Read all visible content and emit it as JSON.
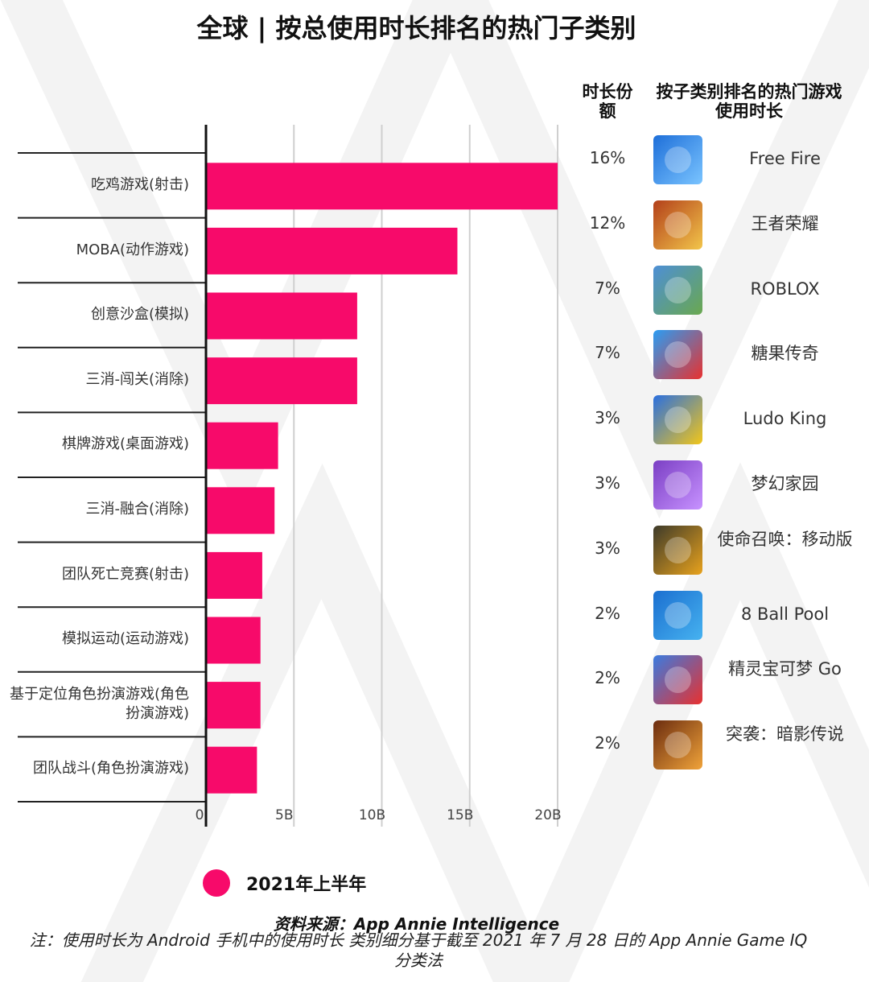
{
  "title": "全球 | 按总使用时长排名的热门子类别",
  "headers": {
    "share": "时长份额",
    "top_game": "按子类别排名的热门游戏使用时长"
  },
  "chart_data": {
    "type": "bar",
    "orientation": "horizontal",
    "categories": [
      "吃鸡游戏(射击)",
      "MOBA(动作游戏)",
      "创意沙盒(模拟)",
      "三消-闯关(消除)",
      "棋牌游戏(桌面游戏)",
      "三消-融合(消除)",
      "团队死亡竞赛(射击)",
      "模拟运动(运动游戏)",
      "基于定位角色扮演游戏(角色扮演游戏)",
      "团队战斗(角色扮演游戏)"
    ],
    "series": [
      {
        "name": "2021年上半年",
        "values": [
          20.0,
          14.3,
          8.6,
          8.6,
          4.1,
          3.9,
          3.2,
          3.1,
          3.1,
          2.9
        ]
      }
    ],
    "xlim": [
      0,
      20
    ],
    "xticks": [
      0,
      5,
      10,
      15,
      20
    ],
    "xtick_labels": [
      "0",
      "5B",
      "10B",
      "15B",
      "20B"
    ],
    "grid": true,
    "legend_position": "bottom",
    "bar_color": "#f70a6a"
  },
  "games": [
    {
      "share": "16%",
      "name": "Free Fire",
      "icon": "free-fire-icon",
      "c1": "#1e6fd9",
      "c2": "#7ac4ff"
    },
    {
      "share": "12%",
      "name": "王者荣耀",
      "icon": "honor-of-kings-icon",
      "c1": "#b3401a",
      "c2": "#f2c54a"
    },
    {
      "share": "7%",
      "name": "ROBLOX",
      "icon": "roblox-icon",
      "c1": "#4d8fd6",
      "c2": "#6aa84f"
    },
    {
      "share": "7%",
      "name": "糖果传奇",
      "icon": "candy-crush-icon",
      "c1": "#2a9df4",
      "c2": "#e8312f"
    },
    {
      "share": "3%",
      "name": "Ludo King",
      "icon": "ludo-king-icon",
      "c1": "#2a6fe0",
      "c2": "#f2c619"
    },
    {
      "share": "3%",
      "name": "梦幻家园",
      "icon": "homescapes-icon",
      "c1": "#7b3fc4",
      "c2": "#c792ff"
    },
    {
      "share": "3%",
      "name": "使命召唤：移动版",
      "icon": "call-of-duty-icon",
      "c1": "#3d3a2a",
      "c2": "#e8a21d"
    },
    {
      "share": "2%",
      "name": "8 Ball Pool",
      "icon": "8-ball-pool-icon",
      "c1": "#1b6fd0",
      "c2": "#46b2f0"
    },
    {
      "share": "2%",
      "name": "精灵宝可梦 Go",
      "icon": "pokemon-go-icon",
      "c1": "#3a7be0",
      "c2": "#e8312f"
    },
    {
      "share": "2%",
      "name": "突袭：暗影传说",
      "icon": "raid-shadow-legends-icon",
      "c1": "#6b2c0f",
      "c2": "#f0a33a"
    }
  ],
  "legend": {
    "label": "2021年上半年",
    "color": "#f70a6a"
  },
  "source": "资料来源：App Annie Intelligence",
  "note": "注：使用时长为 Android 手机中的使用时长 类别细分基于截至 2021 年 7 月 28 日的 App Annie Game IQ 分类法"
}
